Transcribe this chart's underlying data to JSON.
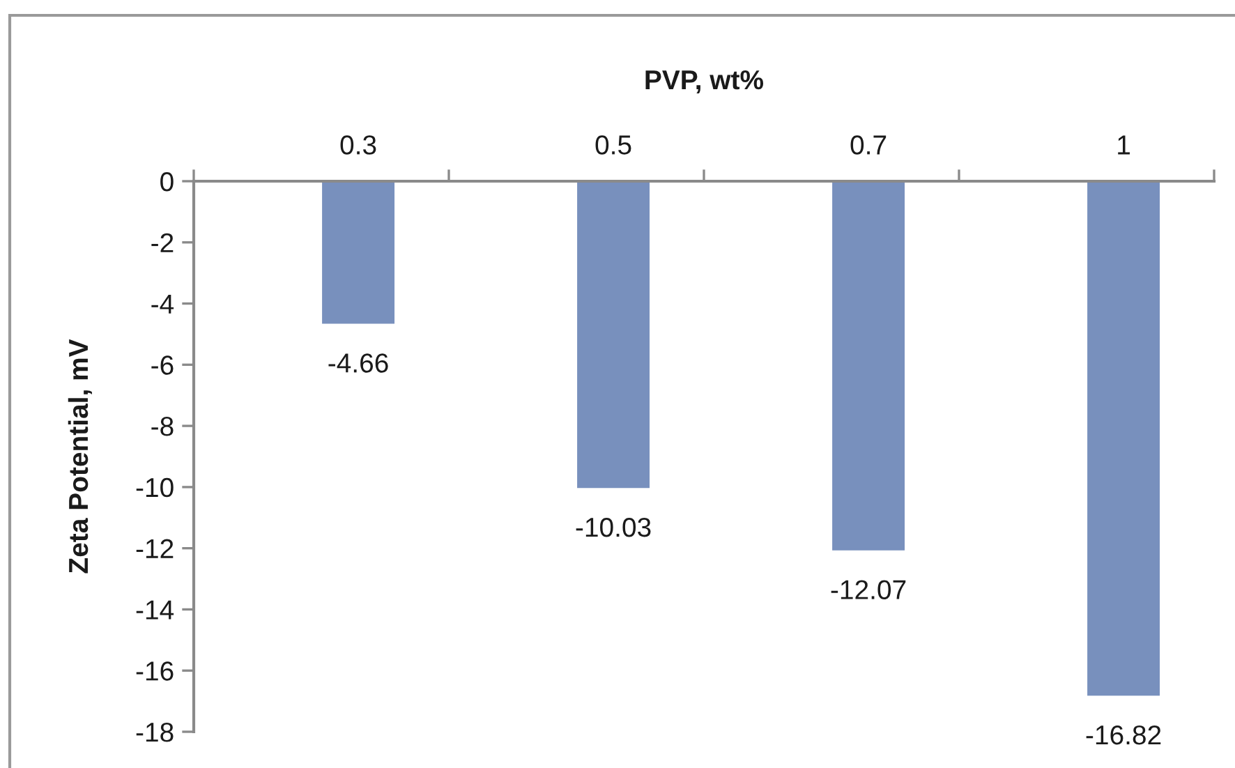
{
  "chart_data": {
    "type": "bar",
    "xlabel": "PVP, wt%",
    "ylabel": "Zeta Potential, mV",
    "categories": [
      "0.3",
      "0.5",
      "0.7",
      "1"
    ],
    "values": [
      -4.66,
      -10.03,
      -12.07,
      -16.82
    ],
    "color": "#7890bd",
    "ylim": [
      -18,
      0
    ],
    "yticks": [
      0,
      -2,
      -4,
      -6,
      -8,
      -10,
      -12,
      -14,
      -16,
      -18
    ],
    "data_labels": true
  }
}
